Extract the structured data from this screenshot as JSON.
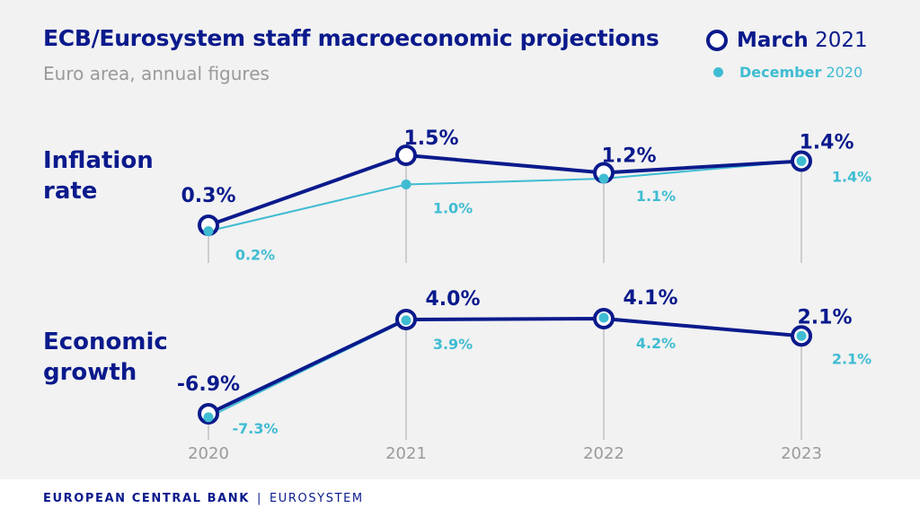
{
  "header": {
    "title": "ECB/Eurosystem staff macroeconomic projections",
    "subtitle": "Euro area, annual figures"
  },
  "legend": {
    "main_bold": "March",
    "main_rest": "2021",
    "secondary_bold": "December",
    "secondary_rest": "2020"
  },
  "rows": [
    {
      "line1": "Inflation",
      "line2": "rate"
    },
    {
      "line1": "Economic",
      "line2": "growth"
    }
  ],
  "footer": {
    "bank": "EUROPEAN CENTRAL BANK",
    "separator": "|",
    "system": "EUROSYSTEM"
  },
  "colors": {
    "march": "#0a1a8c",
    "december": "#3fbcd2",
    "axis": "#a8a8a8",
    "year_label": "#9a9a9a"
  },
  "chart_data": [
    {
      "type": "line",
      "name": "Inflation rate",
      "categories": [
        "2020",
        "2021",
        "2022",
        "2023"
      ],
      "series": [
        {
          "name": "March 2021",
          "values": [
            0.3,
            1.5,
            1.2,
            1.4
          ],
          "labels": [
            "0.3%",
            "1.5%",
            "1.2%",
            "1.4%"
          ]
        },
        {
          "name": "December 2020",
          "values": [
            0.2,
            1.0,
            1.1,
            1.4
          ],
          "labels": [
            "0.2%",
            "1.0%",
            "1.1%",
            "1.4%"
          ]
        }
      ]
    },
    {
      "type": "line",
      "name": "Economic growth",
      "categories": [
        "2020",
        "2021",
        "2022",
        "2023"
      ],
      "series": [
        {
          "name": "March 2021",
          "values": [
            -6.9,
            4.0,
            4.1,
            2.1
          ],
          "labels": [
            "-6.9%",
            "4.0%",
            "4.1%",
            "2.1%"
          ]
        },
        {
          "name": "December 2020",
          "values": [
            -7.3,
            3.9,
            4.2,
            2.1
          ],
          "labels": [
            "-7.3%",
            "3.9%",
            "4.2%",
            "2.1%"
          ]
        }
      ]
    }
  ]
}
